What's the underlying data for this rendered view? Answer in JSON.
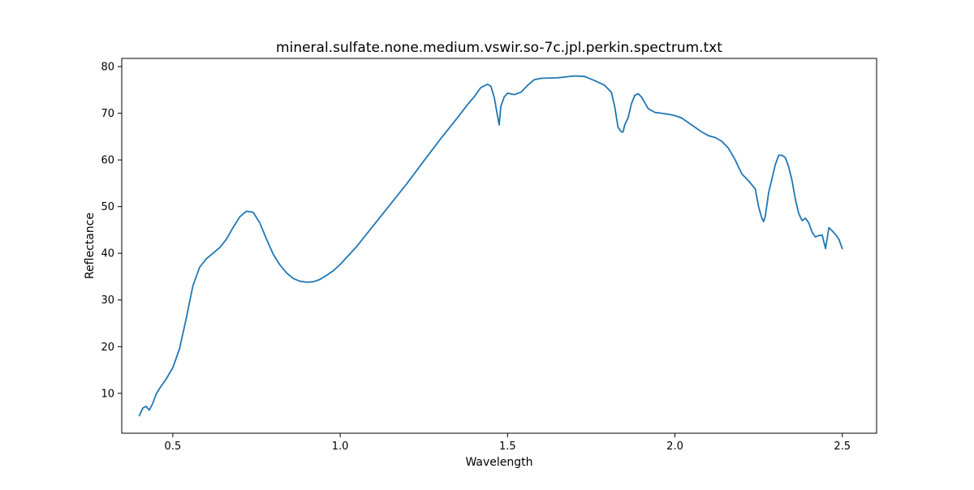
{
  "chart_data": {
    "type": "line",
    "title": "mineral.sulfate.none.medium.vswir.so-7c.jpl.perkin.spectrum.txt",
    "xlabel": "Wavelength",
    "ylabel": "Reflectance",
    "xlim": [
      0.3475,
      2.6025
    ],
    "ylim": [
      1.45,
      81.75
    ],
    "xticks": [
      0.5,
      1.0,
      1.5,
      2.0,
      2.5
    ],
    "xtick_labels": [
      "0.5",
      "1.0",
      "1.5",
      "2.0",
      "2.5"
    ],
    "yticks": [
      10,
      20,
      30,
      40,
      50,
      60,
      70,
      80
    ],
    "ytick_labels": [
      "10",
      "20",
      "30",
      "40",
      "50",
      "60",
      "70",
      "80"
    ],
    "grid": false,
    "series": [
      {
        "color": "#1f77b4",
        "x": [
          0.4,
          0.41,
          0.42,
          0.43,
          0.44,
          0.45,
          0.46,
          0.48,
          0.5,
          0.52,
          0.54,
          0.56,
          0.58,
          0.6,
          0.62,
          0.64,
          0.66,
          0.68,
          0.7,
          0.72,
          0.74,
          0.76,
          0.78,
          0.8,
          0.82,
          0.84,
          0.86,
          0.88,
          0.9,
          0.92,
          0.94,
          0.96,
          0.98,
          1.0,
          1.05,
          1.1,
          1.15,
          1.2,
          1.25,
          1.3,
          1.35,
          1.38,
          1.4,
          1.42,
          1.44,
          1.45,
          1.46,
          1.47,
          1.475,
          1.48,
          1.49,
          1.5,
          1.52,
          1.54,
          1.56,
          1.58,
          1.6,
          1.65,
          1.7,
          1.73,
          1.76,
          1.79,
          1.81,
          1.82,
          1.83,
          1.84,
          1.845,
          1.85,
          1.86,
          1.87,
          1.88,
          1.89,
          1.9,
          1.92,
          1.94,
          1.96,
          1.98,
          2.0,
          2.02,
          2.04,
          2.06,
          2.08,
          2.1,
          2.12,
          2.14,
          2.16,
          2.18,
          2.2,
          2.22,
          2.24,
          2.25,
          2.26,
          2.265,
          2.27,
          2.28,
          2.29,
          2.3,
          2.31,
          2.32,
          2.33,
          2.34,
          2.35,
          2.36,
          2.37,
          2.38,
          2.39,
          2.4,
          2.41,
          2.42,
          2.43,
          2.44,
          2.45,
          2.46,
          2.47,
          2.48,
          2.49,
          2.5
        ],
        "y": [
          5.2,
          6.8,
          7.2,
          6.4,
          7.8,
          9.8,
          11.0,
          13.0,
          15.5,
          19.5,
          26.0,
          33.0,
          37.0,
          38.8,
          40.0,
          41.2,
          43.0,
          45.5,
          47.8,
          49.0,
          48.8,
          46.5,
          43.0,
          39.8,
          37.5,
          35.8,
          34.6,
          34.0,
          33.8,
          33.9,
          34.4,
          35.3,
          36.3,
          37.6,
          41.5,
          46.0,
          50.5,
          55.0,
          59.8,
          64.5,
          69.0,
          71.8,
          73.5,
          75.5,
          76.2,
          75.8,
          73.5,
          69.5,
          67.5,
          71.5,
          73.5,
          74.3,
          74.0,
          74.5,
          76.0,
          77.2,
          77.5,
          77.6,
          78.0,
          77.9,
          77.0,
          76.0,
          74.5,
          71.5,
          67.0,
          66.0,
          66.0,
          67.5,
          69.0,
          72.0,
          73.8,
          74.2,
          73.5,
          71.0,
          70.2,
          70.0,
          69.8,
          69.5,
          69.0,
          68.0,
          67.0,
          66.0,
          65.2,
          64.8,
          64.0,
          62.5,
          60.0,
          57.0,
          55.5,
          53.8,
          50.0,
          47.5,
          46.8,
          48.0,
          53.0,
          56.0,
          59.0,
          61.0,
          61.0,
          60.5,
          58.5,
          55.5,
          51.5,
          48.5,
          47.0,
          47.5,
          46.5,
          44.5,
          43.5,
          43.8,
          43.9,
          41.0,
          45.5,
          44.8,
          44.0,
          43.0,
          41.0
        ]
      }
    ]
  }
}
